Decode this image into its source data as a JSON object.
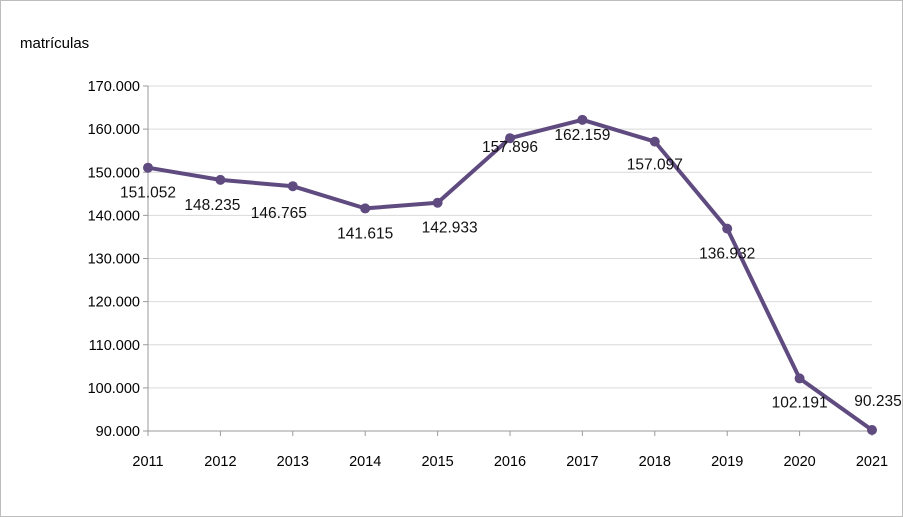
{
  "chart_data": {
    "type": "line",
    "title": "",
    "xlabel": "",
    "ylabel": "matrículas",
    "categories": [
      "2011",
      "2012",
      "2013",
      "2014",
      "2015",
      "2016",
      "2017",
      "2018",
      "2019",
      "2020",
      "2021"
    ],
    "x_tick_labels": [
      "2011",
      "2012",
      "2013",
      "2014",
      "2015",
      "2016",
      "2017",
      "2018",
      "2019",
      "2020",
      "2021"
    ],
    "y_ticks": [
      90000,
      100000,
      110000,
      120000,
      130000,
      140000,
      150000,
      160000,
      170000
    ],
    "y_tick_labels": [
      "90.000",
      "100.000",
      "110.000",
      "120.000",
      "130.000",
      "140.000",
      "150.000",
      "160.000",
      "170.000"
    ],
    "ylim": [
      90000,
      170000
    ],
    "grid": true,
    "legend": "none",
    "series": [
      {
        "values": [
          151052,
          148235,
          146765,
          141615,
          142933,
          157896,
          162159,
          157097,
          136932,
          102191,
          90235
        ],
        "data_labels": [
          "151.052",
          "148.235",
          "146.765",
          "141.615",
          "142.933",
          "157.896",
          "162.159",
          "157.097",
          "136.932",
          "102.191",
          "90.235"
        ],
        "color": "#5f4b80"
      }
    ]
  }
}
